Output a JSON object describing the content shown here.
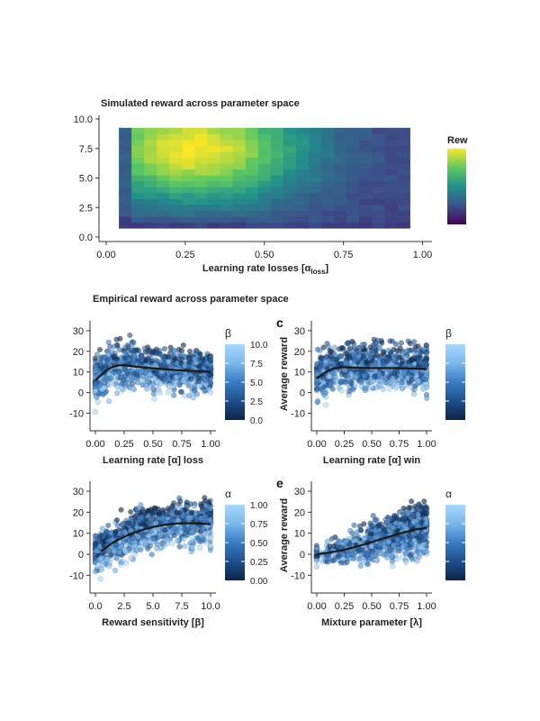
{
  "colors": {
    "viridis": [
      "#440154",
      "#3b528b",
      "#21918c",
      "#5ec962",
      "#fde725"
    ],
    "blues": [
      "#0b2545",
      "#1f4e8c",
      "#3a7cc4",
      "#7ab8ec",
      "#a8d8ff"
    ],
    "trend": "#1a1a1a",
    "axis": "#333333"
  },
  "chart_data": [
    {
      "id": "heatmap",
      "type": "heatmap",
      "title": "Simulated reward across parameter space",
      "xlabel": "Learning rate losses [α",
      "xlabel_sub": "loss",
      "xlabel_end": "]",
      "ylabel": "",
      "xlim": [
        0,
        1
      ],
      "ylim": [
        0,
        10
      ],
      "xticks": [
        "0.00",
        "0.25",
        "0.50",
        "0.75",
        "1.00"
      ],
      "yticks": [
        "0.0",
        "2.5",
        "5.0",
        "7.5",
        "10.0"
      ],
      "legend_title": "Rew",
      "grid_x": [
        0.04,
        0.96
      ],
      "grid_y": [
        0.75,
        9.25
      ],
      "nx": 23,
      "ny": 17,
      "peak": [
        0.28,
        7.5
      ],
      "value_range": [
        0,
        1
      ]
    },
    {
      "id": "section-title",
      "title": "Empirical reward across parameter space"
    },
    {
      "id": "panel-b",
      "type": "scatter",
      "panel_label": "",
      "xlabel": "Learning rate [α] loss",
      "ylabel": "",
      "xlim": [
        0,
        1
      ],
      "ylim": [
        -15,
        33
      ],
      "xticks": [
        "0.00",
        "0.25",
        "0.50",
        "0.75",
        "1.00"
      ],
      "yticks": [
        "-10",
        "0",
        "10",
        "20",
        "30"
      ],
      "color_title": "β",
      "color_ticks": [
        "10.0",
        "7.5",
        "5.0",
        "2.5",
        "0.0"
      ],
      "trend": {
        "x": [
          0,
          0.05,
          0.1,
          0.15,
          0.2,
          0.25,
          0.3,
          0.4,
          0.5,
          0.6,
          0.7,
          0.8,
          0.9,
          1.0
        ],
        "y": [
          6,
          8.5,
          11,
          12.5,
          13.2,
          13.3,
          12.9,
          12.3,
          11.8,
          11.3,
          10.9,
          10.6,
          10.3,
          10
        ]
      }
    },
    {
      "id": "panel-c",
      "type": "scatter",
      "panel_label": "c",
      "xlabel": "Learning rate [α] win",
      "ylabel": "Average reward",
      "xlim": [
        0,
        1
      ],
      "ylim": [
        -15,
        33
      ],
      "xticks": [
        "0.00",
        "0.25",
        "0.50",
        "0.75",
        "1.00"
      ],
      "yticks": [
        "-10",
        "0",
        "10",
        "20",
        "30"
      ],
      "color_title": "β",
      "color_ticks": [],
      "trend": {
        "x": [
          0,
          0.05,
          0.1,
          0.15,
          0.2,
          0.25,
          0.3,
          0.4,
          0.5,
          0.6,
          0.7,
          0.8,
          0.9,
          1.0
        ],
        "y": [
          7,
          8.8,
          10.5,
          11.6,
          12.1,
          12.3,
          12.2,
          12.0,
          11.9,
          11.9,
          11.9,
          11.8,
          11.6,
          11.4
        ]
      }
    },
    {
      "id": "panel-d",
      "type": "scatter",
      "panel_label": "",
      "xlabel": "Reward sensitivity [β]",
      "ylabel": "",
      "xlim": [
        0,
        10
      ],
      "ylim": [
        -15,
        33
      ],
      "xticks": [
        "0.0",
        "2.5",
        "5.0",
        "7.5",
        "10.0"
      ],
      "yticks": [
        "-10",
        "0",
        "10",
        "20",
        "30"
      ],
      "color_title": "α",
      "color_ticks": [
        "1.00",
        "0.75",
        "0.50",
        "0.25",
        "0.00"
      ],
      "trend": {
        "x": [
          0.5,
          1,
          1.5,
          2,
          3,
          4,
          5,
          6,
          7,
          8,
          9,
          10
        ],
        "y": [
          1.5,
          3.5,
          5.5,
          7,
          9.5,
          11.5,
          13,
          14,
          14.6,
          14.8,
          14.6,
          14.3
        ]
      }
    },
    {
      "id": "panel-e",
      "type": "scatter",
      "panel_label": "e",
      "xlabel": "Mixture parameter [λ]",
      "ylabel": "Average reward",
      "xlim": [
        0,
        1
      ],
      "ylim": [
        -15,
        33
      ],
      "xticks": [
        "0.00",
        "0.25",
        "0.50",
        "0.75",
        "1.00"
      ],
      "yticks": [
        "-10",
        "0",
        "10",
        "20",
        "30"
      ],
      "color_title": "α",
      "color_ticks": [],
      "trend": {
        "x": [
          0,
          0.1,
          0.2,
          0.3,
          0.4,
          0.5,
          0.6,
          0.7,
          0.8,
          0.9,
          1.0
        ],
        "y": [
          0,
          0.7,
          1.6,
          2.8,
          4.2,
          5.8,
          7.4,
          9,
          10.5,
          11.8,
          12.5
        ]
      }
    }
  ]
}
